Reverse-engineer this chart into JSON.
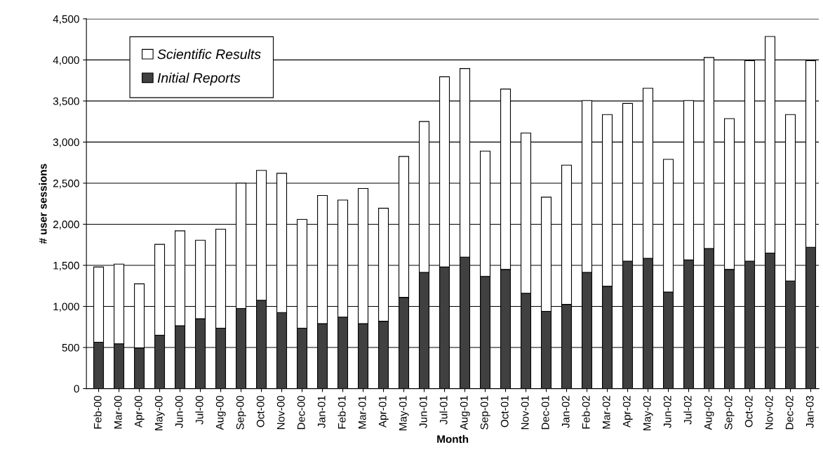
{
  "chart_data": {
    "type": "bar",
    "stacked": true,
    "xlabel": "Month",
    "ylabel": "# user sessions",
    "categories": [
      "Feb-00",
      "Mar-00",
      "Apr-00",
      "May-00",
      "Jun-00",
      "Jul-00",
      "Aug-00",
      "Sep-00",
      "Oct-00",
      "Nov-00",
      "Dec-00",
      "Jan-01",
      "Feb-01",
      "Mar-01",
      "Apr-01",
      "May-01",
      "Jun-01",
      "Jul-01",
      "Aug-01",
      "Sep-01",
      "Oct-01",
      "Nov-01",
      "Dec-01",
      "Jan-02",
      "Feb-02",
      "Mar-02",
      "Apr-02",
      "May-02",
      "Jun-02",
      "Jul-02",
      "Aug-02",
      "Sep-02",
      "Oct-02",
      "Nov-02",
      "Dec-02",
      "Jan-03"
    ],
    "series": [
      {
        "name": "Initial Reports",
        "color": "#404040",
        "values": [
          565,
          545,
          495,
          650,
          765,
          850,
          735,
          975,
          1075,
          925,
          735,
          790,
          870,
          790,
          820,
          1110,
          1415,
          1480,
          1600,
          1365,
          1450,
          1160,
          940,
          1025,
          1415,
          1245,
          1550,
          1585,
          1175,
          1565,
          1705,
          1450,
          1550,
          1650,
          1310,
          1720
        ]
      },
      {
        "name": "Scientific Results",
        "color": "#ffffff",
        "values": [
          915,
          970,
          780,
          1105,
          1155,
          955,
          1205,
          1525,
          1580,
          1695,
          1325,
          1560,
          1425,
          1645,
          1375,
          1715,
          1835,
          2315,
          2295,
          1525,
          2195,
          1950,
          1390,
          1695,
          2090,
          2090,
          1920,
          2070,
          1615,
          1940,
          2325,
          1835,
          2440,
          2635,
          2025,
          2270
        ]
      }
    ],
    "ylim": [
      0,
      4500
    ],
    "yticks": [
      0,
      {
        "value": 500,
        "label": "500"
      },
      {
        "value": 1000,
        "label": "1,000"
      },
      {
        "value": 1500,
        "label": "1,500"
      },
      {
        "value": 2000,
        "label": "2,000"
      },
      {
        "value": 2500,
        "label": "2,500"
      },
      {
        "value": 3000,
        "label": "3,000"
      },
      {
        "value": 3500,
        "label": "3,500"
      },
      {
        "value": 4000,
        "label": "4,000"
      },
      {
        "value": 4500,
        "label": "4,500"
      }
    ],
    "grid": "y",
    "legend": "top left"
  }
}
